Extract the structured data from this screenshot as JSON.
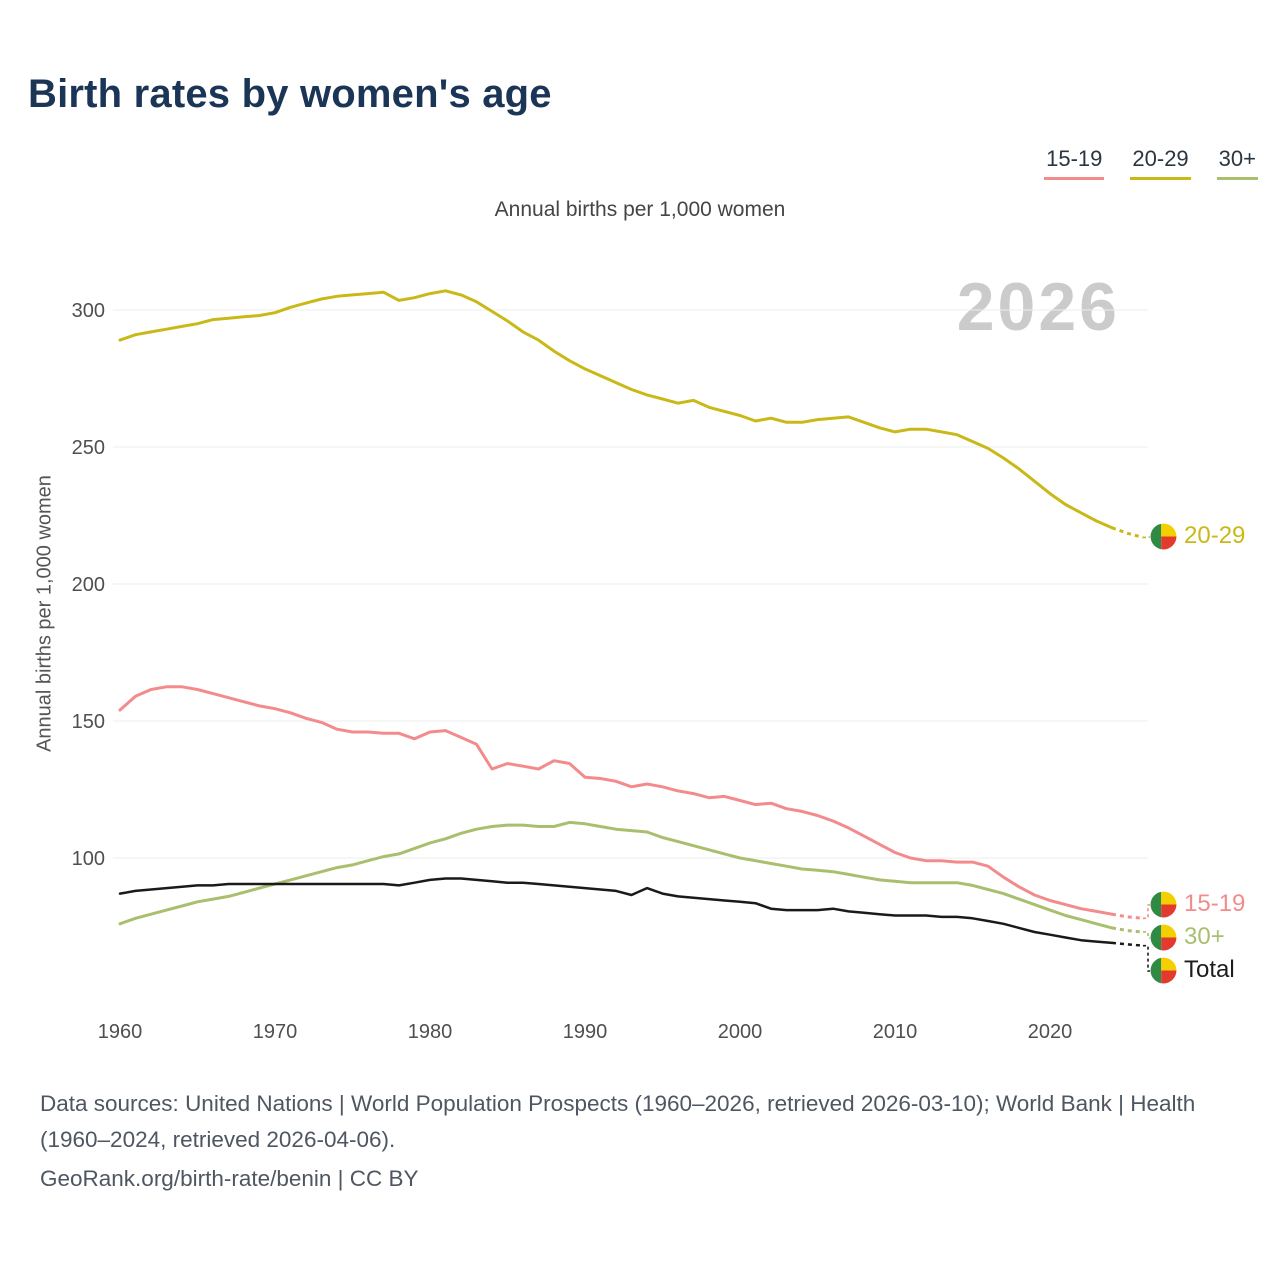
{
  "header": {
    "title": "Birth rates by women's age",
    "subtitle": "Annual births per 1,000 women"
  },
  "watermark": "2026",
  "legend": {
    "items": [
      {
        "label": "15-19",
        "color": "#f38b8d"
      },
      {
        "label": "20-29",
        "color": "#c9b918"
      },
      {
        "label": "30+",
        "color": "#a9bf6d"
      }
    ]
  },
  "axes": {
    "y_label": "Annual births per 1,000 women",
    "y_ticks": [
      100,
      150,
      200,
      250,
      300
    ],
    "x_ticks": [
      1960,
      1970,
      1980,
      1990,
      2000,
      2010,
      2020
    ]
  },
  "flag_colors": {
    "green": "#2f8a43",
    "yellow": "#f5d000",
    "red": "#e23a2e"
  },
  "chart_data": {
    "type": "line",
    "title": "Birth rates by women's age",
    "subtitle": "Annual births per 1,000 women",
    "ylabel": "Annual births per 1,000 women",
    "xlim": [
      1960,
      2026
    ],
    "ylim": [
      60,
      315
    ],
    "grid": true,
    "projection_from": 2024,
    "series": [
      {
        "name": "15-19",
        "color": "#f38b8d",
        "values": [
          154,
          159,
          161.5,
          162.5,
          162.5,
          161.5,
          160,
          158.5,
          157,
          155.5,
          154.5,
          153,
          151,
          149.5,
          147,
          146,
          146,
          145.5,
          145.5,
          143.5,
          146,
          146.5,
          144,
          141.5,
          132.5,
          134.5,
          133.5,
          132.5,
          135.5,
          134.5,
          129.5,
          129,
          128,
          126,
          127,
          126,
          124.5,
          123.5,
          122,
          122.5,
          121,
          119.5,
          120,
          118,
          117,
          115.5,
          113.5,
          111,
          108,
          105,
          102,
          100,
          99,
          99,
          98.5,
          98.5,
          97,
          93,
          89.5,
          86.5,
          84.5,
          83,
          81.5,
          80.5,
          79.5,
          78.5,
          78
        ]
      },
      {
        "name": "20-29",
        "color": "#c9b918",
        "values": [
          289,
          291,
          292,
          293,
          294,
          295,
          296.5,
          297,
          297.5,
          298,
          299,
          301,
          302.5,
          304,
          305,
          305.5,
          306,
          306.5,
          303.5,
          304.5,
          306,
          307,
          305.5,
          303,
          299.5,
          296,
          292,
          289,
          285,
          281.5,
          278.5,
          276,
          273.5,
          271,
          269,
          267.5,
          266,
          267,
          264.5,
          263,
          261.5,
          259.5,
          260.5,
          259,
          259,
          260,
          260.5,
          261,
          259,
          257,
          255.5,
          256.5,
          256.5,
          255.5,
          254.5,
          252,
          249.5,
          246,
          242,
          237.5,
          233,
          229,
          226,
          223,
          220.5,
          218.5,
          217
        ]
      },
      {
        "name": "30+",
        "color": "#a9bf6d",
        "values": [
          76,
          78,
          79.5,
          81,
          82.5,
          84,
          85,
          86,
          87.5,
          89,
          90.5,
          92,
          93.5,
          95,
          96.5,
          97.5,
          99,
          100.5,
          101.5,
          103.5,
          105.5,
          107,
          109,
          110.5,
          111.5,
          112,
          112,
          111.5,
          111.5,
          113,
          112.5,
          111.5,
          110.5,
          110,
          109.5,
          107.5,
          106,
          104.5,
          103,
          101.5,
          100,
          99,
          98,
          97,
          96,
          95.5,
          95,
          94,
          93,
          92,
          91.5,
          91,
          91,
          91,
          91,
          90,
          88.5,
          87,
          85,
          83,
          81,
          79,
          77.5,
          76,
          74.5,
          73.5,
          73
        ]
      },
      {
        "name": "Total",
        "color": "#1a1a1a",
        "values": [
          87,
          88,
          88.5,
          89,
          89.5,
          90,
          90,
          90.5,
          90.5,
          90.5,
          90.5,
          90.5,
          90.5,
          90.5,
          90.5,
          90.5,
          90.5,
          90.5,
          90,
          91,
          92,
          92.5,
          92.5,
          92,
          91.5,
          91,
          91,
          90.5,
          90,
          89.5,
          89,
          88.5,
          88,
          86.5,
          89,
          87,
          86,
          85.5,
          85,
          84.5,
          84,
          83.5,
          81.5,
          81,
          81,
          81,
          81.5,
          80.5,
          80,
          79.5,
          79,
          79,
          79,
          78.5,
          78.5,
          78,
          77,
          76,
          74.5,
          73,
          72,
          71,
          70,
          69.5,
          69,
          68.5,
          68
        ]
      }
    ]
  },
  "end_labels": [
    {
      "label": "20-29",
      "series": "20-29",
      "color": "#c9b918"
    },
    {
      "label": "15-19",
      "series": "15-19",
      "color": "#f38b8d"
    },
    {
      "label": "30+",
      "series": "30+",
      "color": "#a9bf6d"
    },
    {
      "label": "Total",
      "series": "Total",
      "color": "#1d1d1d"
    }
  ],
  "footer": {
    "sources": "Data sources: United Nations | World Population Prospects (1960–2026, retrieved 2026-03-10); World Bank | Health (1960–2024, retrieved 2026-04-06).",
    "attribution": "GeoRank.org/birth-rate/benin | CC BY"
  }
}
